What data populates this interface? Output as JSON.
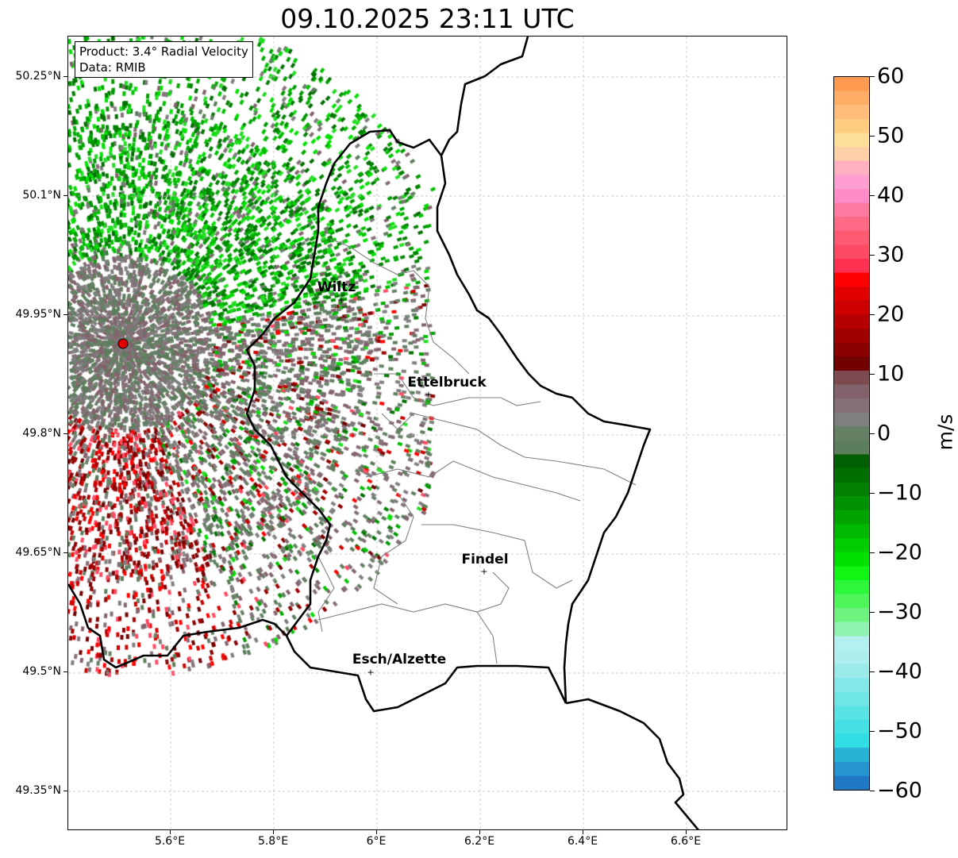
{
  "title": "09.10.2025 23:11 UTC",
  "info": {
    "product": "Product: 3.4° Radial Velocity",
    "data": "Data: RMIB"
  },
  "axes": {
    "lat_ticks": [
      "50.25°N",
      "50.1°N",
      "49.95°N",
      "49.8°N",
      "49.65°N",
      "49.5°N",
      "49.35°N"
    ],
    "lon_ticks": [
      "5.6°E",
      "5.8°E",
      "6°E",
      "6.2°E",
      "6.4°E",
      "6.6°E"
    ]
  },
  "cities": [
    {
      "name": "Wiltz"
    },
    {
      "name": "Ettelbruck"
    },
    {
      "name": "Findel"
    },
    {
      "name": "Esch/Alzette"
    }
  ],
  "colorbar": {
    "label": "m/s",
    "ticks": [
      "60",
      "50",
      "40",
      "30",
      "20",
      "10",
      "0",
      "−10",
      "−20",
      "−30",
      "−40",
      "−50",
      "−60"
    ],
    "range": [
      -60,
      60
    ],
    "colors": [
      "#1f78c1",
      "#2596cf",
      "#27b3d6",
      "#30dde2",
      "#45e0e3",
      "#5ae3e5",
      "#6fe5e6",
      "#85e8e8",
      "#9aeaea",
      "#aeeeee",
      "#b5f0f0",
      "#8ef4b0",
      "#6ef47e",
      "#4ff55b",
      "#2df73a",
      "#10f514",
      "#00e000",
      "#00cc00",
      "#00b800",
      "#00a300",
      "#009200",
      "#007f00",
      "#006f00",
      "#005f00",
      "#5c7e5c",
      "#668066",
      "#7f7f7f",
      "#857078",
      "#83626c",
      "#7d4a50",
      "#720000",
      "#8a0000",
      "#a00000",
      "#b40000",
      "#cc0000",
      "#e10000",
      "#ff0000",
      "#ff3050",
      "#ff4a63",
      "#ff5a74",
      "#ff6a86",
      "#ff7aa0",
      "#ff8cc8",
      "#ff9ed0",
      "#ffb0c0",
      "#ffd0a8",
      "#ffe09a",
      "#ffcc80",
      "#ffbc7a",
      "#ffac66",
      "#ff9a50"
    ]
  },
  "radar_site_color": "#e00000"
}
